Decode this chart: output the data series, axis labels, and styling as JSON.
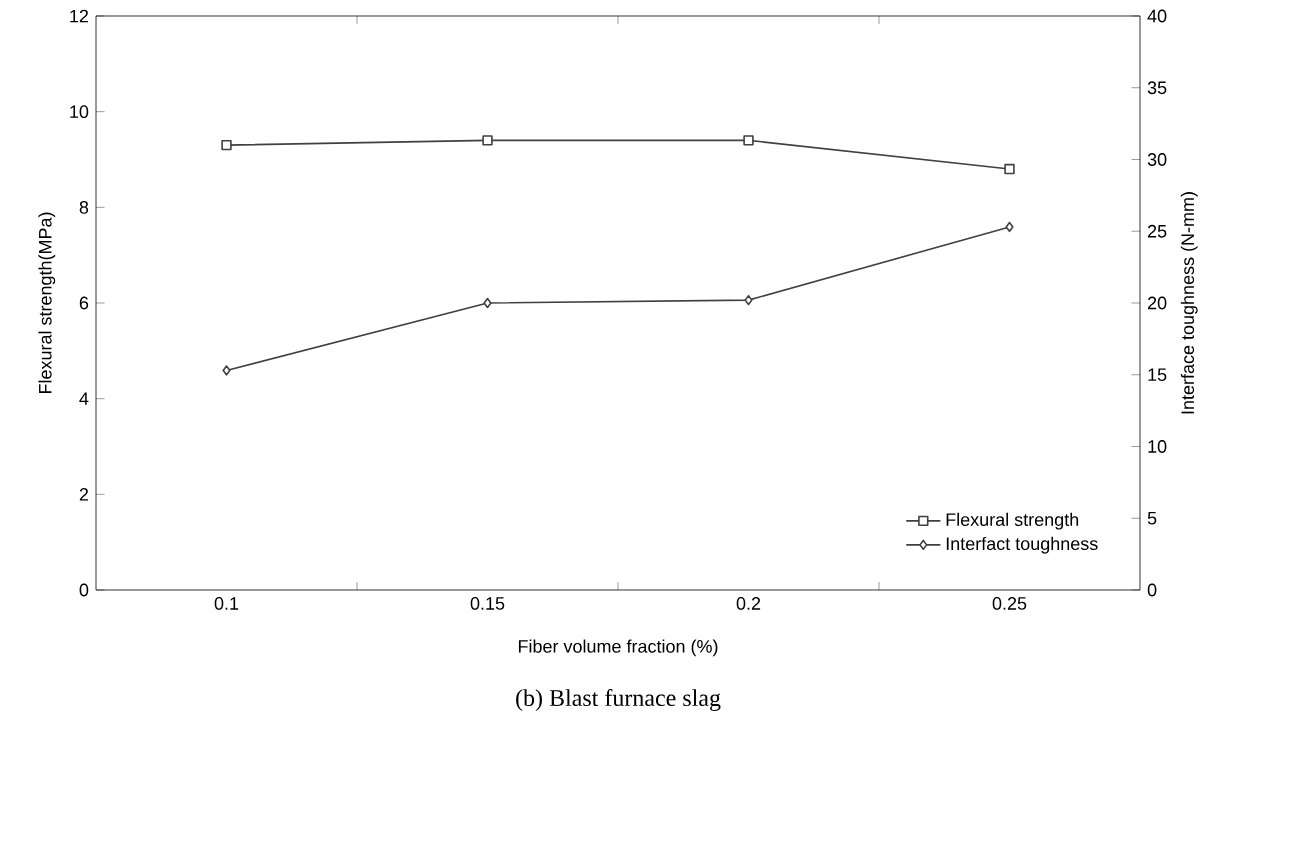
{
  "chart_data": {
    "type": "line",
    "xlabel": "Fiber volume fraction (%)",
    "ylabel": "Flexural strength(MPa)",
    "y2label": "Interface toughness (N-mm)",
    "categories": [
      "0.1",
      "0.15",
      "0.2",
      "0.25"
    ],
    "series": [
      {
        "name": "Flexural strength",
        "color": "#404040",
        "marker": "square",
        "values": [
          9.3,
          9.4,
          9.4,
          8.8
        ]
      },
      {
        "name": "Interfact toughness",
        "color": "#404040",
        "marker": "diamond",
        "axis": "y2",
        "values": [
          15.3,
          20.0,
          20.2,
          25.3
        ]
      }
    ],
    "ylim": [
      0,
      12
    ],
    "yticks": [
      0,
      2,
      4,
      6,
      8,
      10,
      12
    ],
    "y2lim": [
      0,
      40
    ],
    "y2ticks": [
      0,
      5,
      10,
      15,
      20,
      25,
      30,
      35,
      40
    ],
    "legend": "bottom right",
    "line_style": "solid",
    "annotations": [
      "(b) Blast furnace slag"
    ]
  }
}
